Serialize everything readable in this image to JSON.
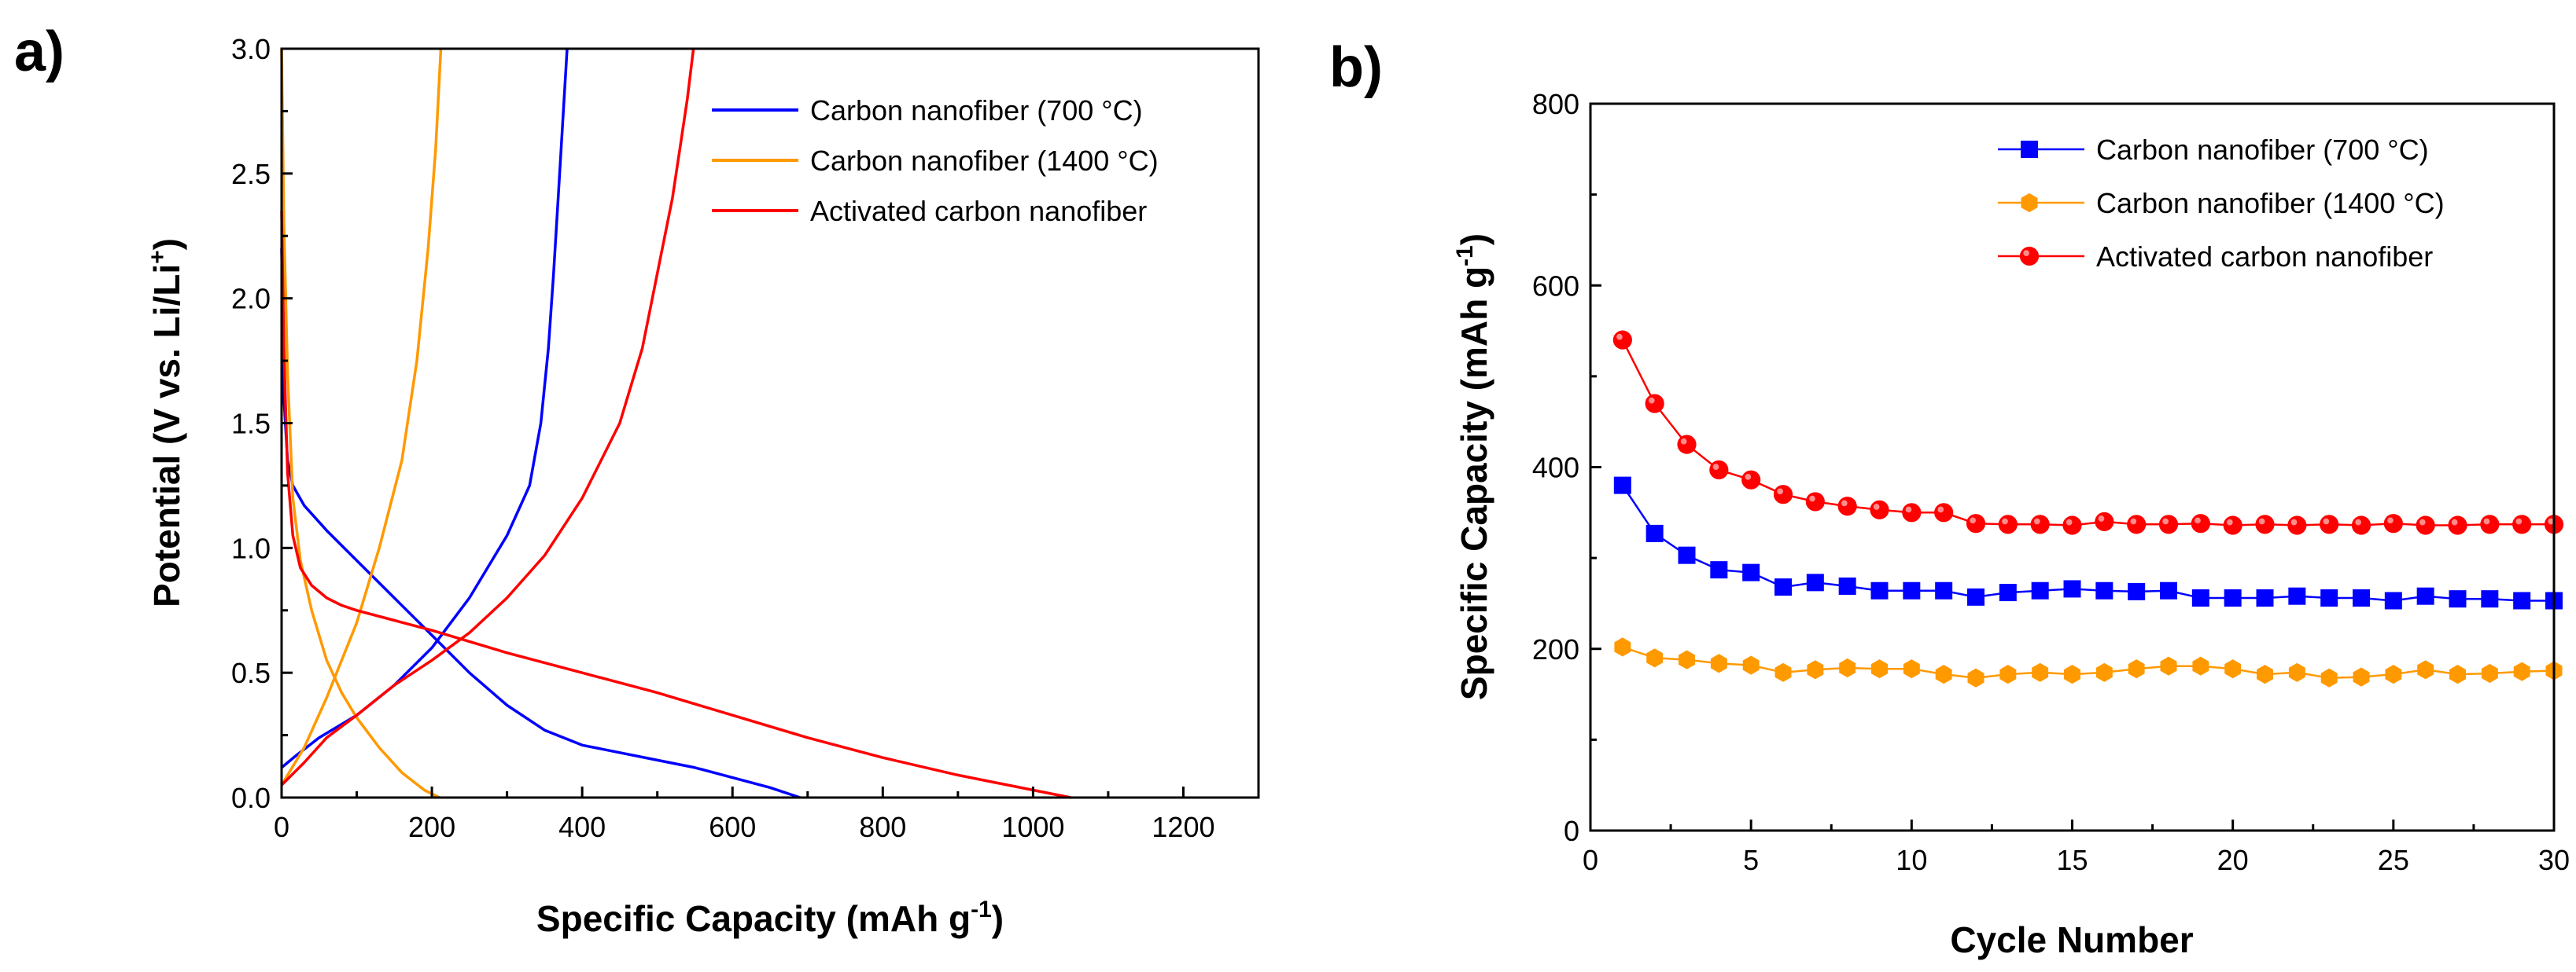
{
  "chart_data": [
    {
      "panel": "a)",
      "type": "line",
      "xlabel": "Specific Capacity (mAh g",
      "xlabel_sup": "-1",
      "xlabel_end": ")",
      "ylabel": "Potential (V vs. Li/Li",
      "ylabel_sup": "+",
      "ylabel_end": ")",
      "xlim": [
        0,
        1300
      ],
      "ylim": [
        0,
        3.0
      ],
      "xticks": [
        0,
        200,
        400,
        600,
        800,
        1000,
        1200
      ],
      "yticks": [
        0.0,
        0.5,
        1.0,
        1.5,
        2.0,
        2.5,
        3.0
      ],
      "ytick_labels": [
        "0.0",
        "0.5",
        "1.0",
        "1.5",
        "2.0",
        "2.5",
        "3.0"
      ],
      "grid": false,
      "legend_position": "top-right",
      "series": [
        {
          "name": "Carbon nanofiber (700 °C)",
          "color": "#0000ff",
          "discharge": {
            "x": [
              0,
              3,
              8,
              15,
              30,
              60,
              100,
              150,
              200,
              250,
              300,
              350,
              400,
              450,
              500,
              550,
              600,
              650,
              690
            ],
            "y": [
              2.2,
              1.6,
              1.35,
              1.25,
              1.17,
              1.07,
              0.95,
              0.8,
              0.65,
              0.5,
              0.37,
              0.27,
              0.21,
              0.18,
              0.15,
              0.12,
              0.08,
              0.04,
              0.0
            ]
          },
          "charge": {
            "x": [
              0,
              20,
              50,
              100,
              150,
              200,
              250,
              300,
              330,
              345,
              355,
              362,
              368,
              372,
              376,
              380
            ],
            "y": [
              0.12,
              0.17,
              0.24,
              0.33,
              0.45,
              0.6,
              0.8,
              1.05,
              1.25,
              1.5,
              1.8,
              2.1,
              2.4,
              2.6,
              2.8,
              3.0
            ]
          }
        },
        {
          "name": "Carbon nanofiber (1400 °C)",
          "color": "#ff9900",
          "discharge": {
            "x": [
              0,
              3,
              8,
              15,
              25,
              40,
              60,
              80,
              100,
              130,
              160,
              190,
              210
            ],
            "y": [
              3.0,
              2.3,
              1.7,
              1.2,
              0.95,
              0.75,
              0.55,
              0.42,
              0.32,
              0.2,
              0.1,
              0.03,
              0.0
            ]
          },
          "charge": {
            "x": [
              0,
              30,
              60,
              100,
              130,
              160,
              180,
              195,
              205,
              212
            ],
            "y": [
              0.05,
              0.2,
              0.4,
              0.7,
              1.0,
              1.35,
              1.75,
              2.2,
              2.6,
              3.0
            ]
          }
        },
        {
          "name": "Activated carbon nanofiber",
          "color": "#ff0000",
          "discharge": {
            "x": [
              0,
              3,
              8,
              15,
              25,
              40,
              60,
              80,
              100,
              150,
              200,
              300,
              400,
              500,
              600,
              700,
              800,
              900,
              1000,
              1050
            ],
            "y": [
              2.35,
              1.8,
              1.3,
              1.05,
              0.92,
              0.85,
              0.8,
              0.77,
              0.75,
              0.71,
              0.67,
              0.58,
              0.5,
              0.42,
              0.33,
              0.24,
              0.16,
              0.09,
              0.03,
              0.0
            ]
          },
          "charge": {
            "x": [
              0,
              30,
              60,
              100,
              150,
              200,
              250,
              300,
              350,
              400,
              450,
              480,
              500,
              520,
              530,
              540,
              548
            ],
            "y": [
              0.05,
              0.14,
              0.24,
              0.33,
              0.45,
              0.55,
              0.66,
              0.8,
              0.97,
              1.2,
              1.5,
              1.8,
              2.1,
              2.4,
              2.6,
              2.8,
              3.0
            ]
          }
        }
      ]
    },
    {
      "panel": "b)",
      "type": "line",
      "xlabel": "Cycle Number",
      "ylabel": "Specific Capacity (mAh g",
      "ylabel_sup": "-1",
      "ylabel_end": ")",
      "xlim": [
        0,
        30
      ],
      "ylim": [
        0,
        800
      ],
      "xticks": [
        0,
        5,
        10,
        15,
        20,
        25,
        30
      ],
      "yticks": [
        0,
        200,
        400,
        600,
        800
      ],
      "grid": false,
      "legend_position": "top-right",
      "x": [
        1,
        2,
        3,
        4,
        5,
        6,
        7,
        8,
        9,
        10,
        11,
        12,
        13,
        14,
        15,
        16,
        17,
        18,
        19,
        20,
        21,
        22,
        23,
        24,
        25,
        26,
        27,
        28,
        29,
        30
      ],
      "series": [
        {
          "name": "Carbon nanofiber (700 °C)",
          "color": "#0000ff",
          "marker": "square",
          "values": [
            380,
            327,
            303,
            287,
            284,
            268,
            273,
            269,
            264,
            264,
            264,
            257,
            262,
            264,
            266,
            264,
            263,
            264,
            256,
            256,
            256,
            258,
            256,
            256,
            253,
            258,
            255,
            255,
            253,
            253
          ]
        },
        {
          "name": "Carbon nanofiber (1400 °C)",
          "color": "#ff9900",
          "marker": "hexagon",
          "values": [
            202,
            190,
            188,
            184,
            182,
            174,
            177,
            179,
            178,
            178,
            172,
            168,
            172,
            174,
            172,
            174,
            178,
            181,
            181,
            178,
            172,
            174,
            168,
            169,
            172,
            177,
            172,
            173,
            175,
            176
          ]
        },
        {
          "name": "Activated carbon nanofiber",
          "color": "#ff0000",
          "marker": "circle",
          "values": [
            540,
            470,
            425,
            397,
            386,
            370,
            362,
            357,
            353,
            350,
            350,
            338,
            337,
            337,
            336,
            340,
            337,
            337,
            338,
            336,
            337,
            336,
            337,
            336,
            338,
            336,
            336,
            337,
            337,
            337
          ]
        }
      ]
    }
  ]
}
